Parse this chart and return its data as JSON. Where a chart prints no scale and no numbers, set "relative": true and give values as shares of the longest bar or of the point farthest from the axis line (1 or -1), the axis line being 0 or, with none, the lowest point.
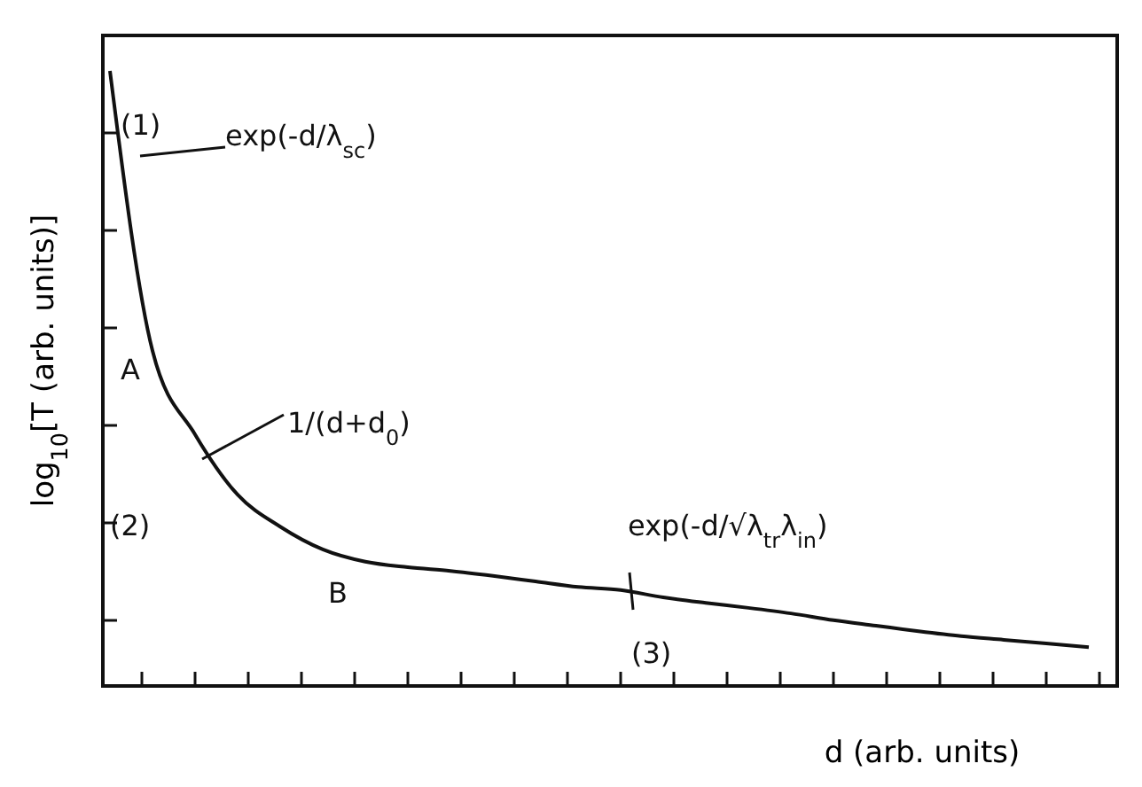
{
  "chart_data": {
    "type": "line",
    "relative": true,
    "xlabel": "d (arb. units)",
    "ylabel": "log$_{10}$[T (arb. units)]",
    "categories": [
      null,
      null,
      null,
      null,
      null,
      null,
      null,
      null,
      null,
      null,
      null,
      null,
      null,
      null,
      null,
      null,
      null,
      null,
      null,
      null,
      null,
      null,
      null,
      null
    ],
    "series": [
      {
        "color": "#111111",
        "values": [
          1.0,
          0.545,
          0.409,
          0.311,
          0.259,
          0.222,
          0.202,
          0.193,
          0.187,
          0.179,
          0.17,
          0.161,
          0.156,
          0.144,
          0.135,
          0.127,
          0.118,
          0.107,
          0.098,
          0.089,
          0.081,
          0.075,
          0.069,
          0.063
        ]
      }
    ],
    "annotations": [
      "(1)",
      "exp(-d/λ$_{sc}$)",
      "A",
      "1/(d+d$_{0}$)",
      "(2)",
      "B",
      "exp(-d/√λ$_{tr}$λ$_{in}$)",
      "(3)"
    ],
    "marker": "none",
    "line_style": "solid",
    "grid": false
  }
}
